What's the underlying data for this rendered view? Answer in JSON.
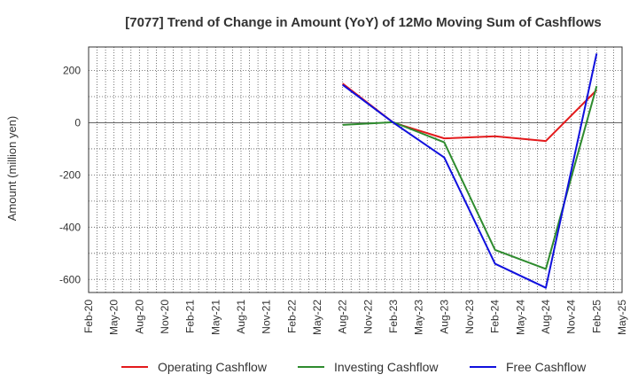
{
  "chart_data": {
    "type": "line",
    "title": "[7077]  Trend of Change in Amount (YoY) of 12Mo Moving Sum of Cashflows",
    "xlabel": "",
    "ylabel": "Amount (million yen)",
    "categories": [
      "Feb-20",
      "May-20",
      "Aug-20",
      "Nov-20",
      "Feb-21",
      "May-21",
      "Aug-21",
      "Nov-21",
      "Feb-22",
      "May-22",
      "Aug-22",
      "Nov-22",
      "Feb-23",
      "May-23",
      "Aug-23",
      "Nov-23",
      "Feb-24",
      "May-24",
      "Aug-24",
      "Nov-24",
      "Feb-25",
      "May-25"
    ],
    "ylim": [
      -650,
      290
    ],
    "yticks": [
      200,
      0,
      -200,
      -400,
      -600
    ],
    "grid": true,
    "legend_position": "bottom",
    "series": [
      {
        "name": "Operating Cashflow",
        "color": "#e31a1c",
        "points": [
          [
            "Aug-22",
            150
          ],
          [
            "Feb-23",
            0
          ],
          [
            "Aug-23",
            -60
          ],
          [
            "Feb-24",
            -52
          ],
          [
            "Aug-24",
            -70
          ],
          [
            "Feb-25",
            125
          ]
        ]
      },
      {
        "name": "Investing Cashflow",
        "color": "#2e8b2e",
        "points": [
          [
            "Aug-22",
            -8
          ],
          [
            "Feb-23",
            2
          ],
          [
            "Aug-23",
            -75
          ],
          [
            "Feb-24",
            -487
          ],
          [
            "Aug-24",
            -560
          ],
          [
            "Feb-25",
            140
          ]
        ]
      },
      {
        "name": "Free Cashflow",
        "color": "#1010dd",
        "points": [
          [
            "Aug-22",
            145
          ],
          [
            "Feb-23",
            0
          ],
          [
            "Aug-23",
            -133
          ],
          [
            "Feb-24",
            -540
          ],
          [
            "Aug-24",
            -632
          ],
          [
            "Feb-25",
            265
          ]
        ]
      }
    ]
  }
}
